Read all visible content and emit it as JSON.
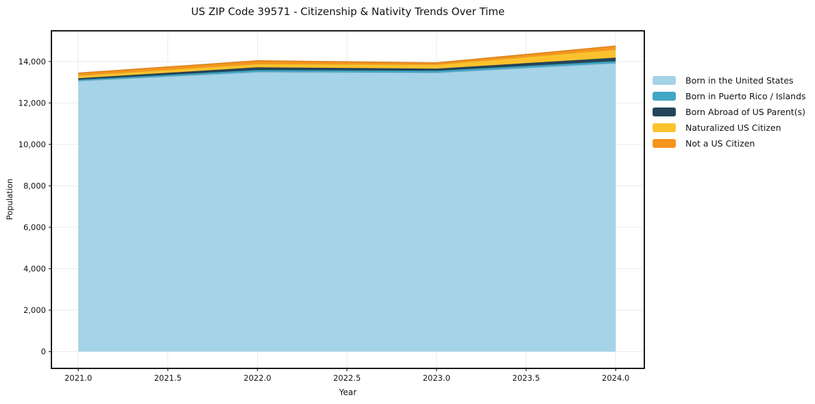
{
  "chart_data": {
    "type": "area",
    "stacked": true,
    "title": "US ZIP Code 39571 - Citizenship & Nativity Trends Over Time",
    "xlabel": "Year",
    "ylabel": "Population",
    "x": [
      2021,
      2022,
      2023,
      2024
    ],
    "series": [
      {
        "name": "Born in the United States",
        "color": "#a5d3e8",
        "values": [
          13060,
          13490,
          13455,
          13920
        ]
      },
      {
        "name": "Born in Puerto Rico / Islands",
        "color": "#42a7c5",
        "values": [
          65,
          100,
          100,
          100
        ]
      },
      {
        "name": "Born Abroad of US Parent(s)",
        "color": "#24455a",
        "values": [
          65,
          130,
          100,
          165
        ]
      },
      {
        "name": "Naturalized US Citizen",
        "color": "#fcc22d",
        "values": [
          135,
          165,
          200,
          395
        ]
      },
      {
        "name": "Not a US Citizen",
        "color": "#f6941e",
        "values": [
          115,
          150,
          80,
          165
        ]
      }
    ],
    "totals": [
      13440,
      14035,
      13935,
      14745
    ],
    "x_ticks": {
      "values": [
        2021.0,
        2021.5,
        2022.0,
        2022.5,
        2023.0,
        2023.5,
        2024.0
      ],
      "labels": [
        "2021.0",
        "2021.5",
        "2022.0",
        "2022.5",
        "2023.0",
        "2023.5",
        "2024.0"
      ]
    },
    "y_ticks": {
      "values": [
        0,
        2000,
        4000,
        6000,
        8000,
        10000,
        12000,
        14000
      ],
      "labels": [
        "0",
        "2,000",
        "4,000",
        "6,000",
        "8,000",
        "10,000",
        "12,000",
        "14,000"
      ]
    },
    "xlim": [
      2020.85,
      2024.16
    ],
    "ylim": [
      -810,
      15480
    ],
    "grid": true,
    "legend_position": "right",
    "colors": {
      "grid": "#ebebeb",
      "frame": "#000000",
      "text": "#111111",
      "tick": "#222222"
    }
  }
}
